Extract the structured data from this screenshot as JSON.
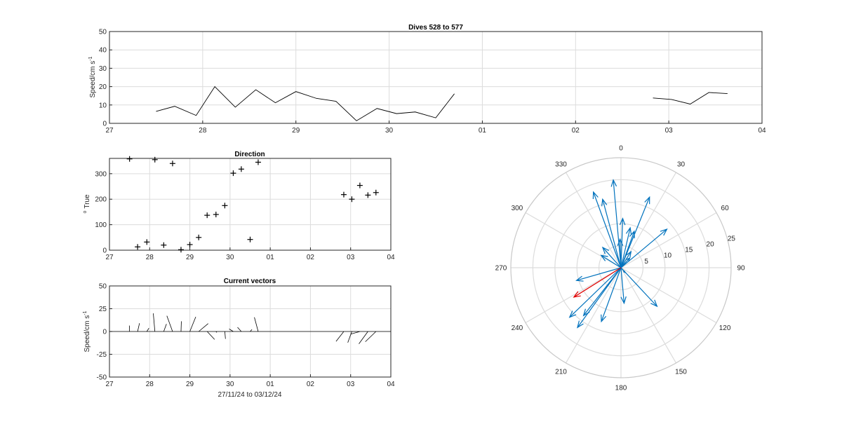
{
  "figure": {
    "title": "Dives 528 to 577",
    "x_ticks": [
      "27",
      "28",
      "29",
      "30",
      "01",
      "02",
      "03",
      "04"
    ]
  },
  "chart_data": [
    {
      "id": "speed",
      "type": "line",
      "title": "Dives 528 to 577",
      "ylabel": "Speed/cm s",
      "ylabel_exponent": "-1",
      "xlabel": "",
      "xlim": [
        "27",
        "04"
      ],
      "ylim": [
        0,
        50
      ],
      "y_ticks": [
        0,
        10,
        20,
        30,
        40,
        50
      ],
      "grid": true,
      "series": [
        {
          "color": "#000000",
          "x": [
            27.5,
            27.7,
            27.93,
            28.13,
            28.35,
            28.57,
            28.78,
            29.0,
            29.22,
            29.43,
            29.65,
            29.87,
            30.08,
            30.28,
            30.5,
            30.7
          ],
          "y": [
            6.5,
            9.3,
            4.3,
            20.0,
            8.8,
            18.3,
            11.2,
            17.3,
            13.6,
            12.0,
            1.4,
            8.1,
            5.3,
            6.2,
            3.0,
            16.1
          ]
        },
        {
          "color": "#000000",
          "x": [
            32.83,
            33.03,
            33.23,
            33.43,
            33.63
          ],
          "y": [
            13.8,
            13.0,
            10.5,
            16.8,
            16.2
          ]
        }
      ]
    },
    {
      "id": "direction",
      "type": "scatter",
      "title": "Direction",
      "ylabel": "True",
      "ylabel_prefix": "o",
      "xlabel": "",
      "xlim": [
        "27",
        "04"
      ],
      "ylim": [
        0,
        360
      ],
      "y_ticks": [
        0,
        100,
        200,
        300
      ],
      "grid": true,
      "marker": "+",
      "x": [
        27.5,
        27.7,
        27.93,
        28.13,
        28.35,
        28.57,
        28.78,
        29.0,
        29.22,
        29.43,
        29.65,
        29.87,
        30.08,
        30.28,
        30.5,
        30.7,
        32.83,
        33.03,
        33.23,
        33.43,
        33.63
      ],
      "y": [
        358,
        13,
        32,
        355,
        20,
        340,
        2,
        22,
        50,
        137,
        140,
        175,
        302,
        318,
        42,
        345,
        218,
        200,
        254,
        216,
        226
      ]
    },
    {
      "id": "vectors",
      "type": "line",
      "title": "Current vectors",
      "ylabel": "Speed/cm s",
      "ylabel_exponent": "-1",
      "xlabel": "27/11/24 to 03/12/24",
      "xlim": [
        "27",
        "04"
      ],
      "ylim": [
        -50,
        50
      ],
      "y_ticks": [
        -50,
        -25,
        0,
        25,
        50
      ],
      "grid": true
    },
    {
      "id": "compass",
      "type": "scatter",
      "title": "",
      "angle_labels": [
        "0",
        "30",
        "60",
        "90",
        "120",
        "150",
        "180",
        "210",
        "240",
        "270",
        "300",
        "330"
      ],
      "radial_ticks": [
        5,
        10,
        15,
        20,
        25
      ],
      "rmax": 25,
      "grid": true,
      "colors": {
        "vectors": "#0072bd",
        "mean": "#e00000"
      },
      "mean_vector": {
        "dir": 238,
        "speed": 12.6
      }
    }
  ]
}
